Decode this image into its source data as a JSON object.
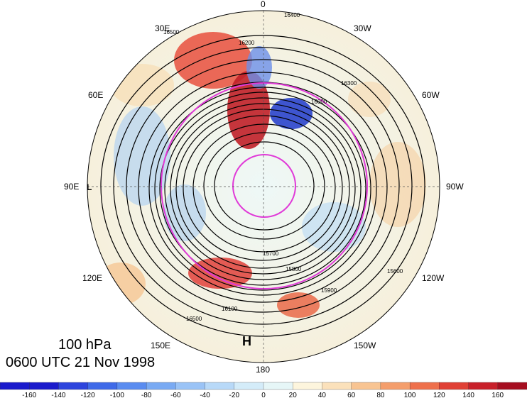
{
  "title": {
    "level": "100 hPa",
    "time": "0600 UTC 21 Nov 1998"
  },
  "longitude_labels": {
    "top": "0",
    "bottom": "180",
    "left": "90E",
    "right": "90W",
    "upper_left_1": "30E",
    "upper_left_2": "60E",
    "upper_right_1": "30W",
    "upper_right_2": "60W",
    "lower_left_1": "120E",
    "lower_left_2": "150E",
    "lower_right_1": "120W",
    "lower_right_2": "150W"
  },
  "pressure_centers": {
    "high": "H",
    "low": "L"
  },
  "contour_labels": [
    "16400",
    "16200",
    "16300",
    "16500",
    "15700",
    "15800",
    "15600",
    "16500",
    "15900",
    "16100",
    "16000"
  ],
  "colorbar": {
    "ticks": [
      "-160",
      "-140",
      "-120",
      "-100",
      "-80",
      "-60",
      "-40",
      "-20",
      "0",
      "20",
      "40",
      "60",
      "80",
      "100",
      "120",
      "140",
      "160"
    ],
    "colors": [
      "#1a1acc",
      "#2d44dd",
      "#3f6ae8",
      "#5a8cf0",
      "#79aaf3",
      "#9ac3f6",
      "#b8d9f8",
      "#d4ecf9",
      "#e6f6f7",
      "#fdf5dd",
      "#fbe1bb",
      "#f8c492",
      "#f49e6c",
      "#ee704c",
      "#e04035",
      "#c8202a",
      "#a50e20"
    ]
  },
  "colors": {
    "circle": "#e03ad8",
    "contour": "#000000"
  }
}
